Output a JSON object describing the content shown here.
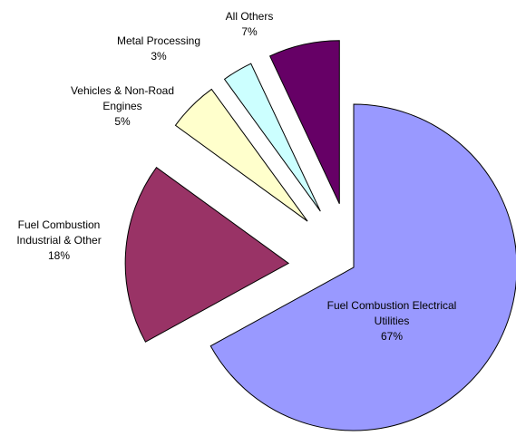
{
  "chart_data": {
    "type": "pie",
    "categories": [
      "Fuel Combustion Electrical Utilities",
      "Fuel Combustion Industrial & Other",
      "Vehicles & Non-Road Engines",
      "Metal Processing",
      "All Others"
    ],
    "values": [
      67,
      18,
      5,
      3,
      7
    ],
    "value_labels": [
      "67%",
      "18%",
      "5%",
      "3%",
      "7%"
    ],
    "colors": [
      "#9999ff",
      "#993366",
      "#ffffcc",
      "#ccffff",
      "#660066"
    ]
  }
}
